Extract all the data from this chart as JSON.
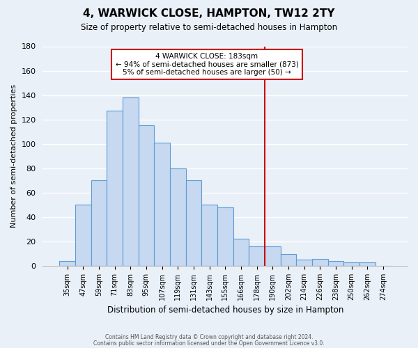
{
  "title": "4, WARWICK CLOSE, HAMPTON, TW12 2TY",
  "subtitle": "Size of property relative to semi-detached houses in Hampton",
  "xlabel": "Distribution of semi-detached houses by size in Hampton",
  "ylabel": "Number of semi-detached properties",
  "footer_line1": "Contains HM Land Registry data © Crown copyright and database right 2024.",
  "footer_line2": "Contains public sector information licensed under the Open Government Licence v3.0.",
  "bar_labels": [
    "35sqm",
    "47sqm",
    "59sqm",
    "71sqm",
    "83sqm",
    "95sqm",
    "107sqm",
    "119sqm",
    "131sqm",
    "143sqm",
    "155sqm",
    "166sqm",
    "178sqm",
    "190sqm",
    "202sqm",
    "214sqm",
    "226sqm",
    "238sqm",
    "250sqm",
    "262sqm",
    "274sqm"
  ],
  "bar_heights": [
    4,
    50,
    70,
    127,
    138,
    115,
    101,
    80,
    70,
    50,
    48,
    22,
    16,
    16,
    10,
    5,
    6,
    4,
    3,
    3,
    0
  ],
  "bar_color": "#c6d9f0",
  "bar_edge_color": "#5b9bd5",
  "vline_after_index": 12,
  "vline_color": "#cc0000",
  "ylim": [
    0,
    180
  ],
  "yticks": [
    0,
    20,
    40,
    60,
    80,
    100,
    120,
    140,
    160,
    180
  ],
  "annotation_title": "4 WARWICK CLOSE: 183sqm",
  "annotation_line1": "← 94% of semi-detached houses are smaller (873)",
  "annotation_line2": "5% of semi-detached houses are larger (50) →",
  "bg_color": "#eaf0f8",
  "plot_bg_color": "#eaf0f8",
  "grid_color": "#ffffff"
}
